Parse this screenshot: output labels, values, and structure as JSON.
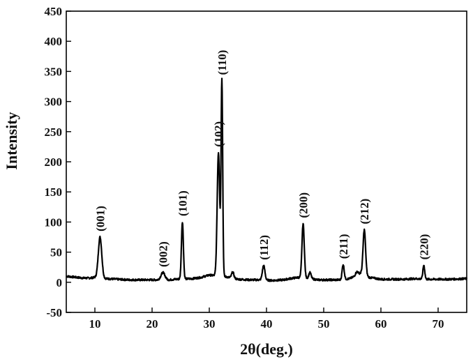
{
  "chart_data": {
    "type": "line",
    "title": "",
    "xlabel": "2θ(deg.)",
    "ylabel": "Intensity",
    "xlim": [
      5,
      75
    ],
    "ylim": [
      -50,
      450
    ],
    "xticks": [
      10,
      20,
      30,
      40,
      50,
      60,
      70
    ],
    "yticks": [
      -50,
      0,
      50,
      100,
      150,
      200,
      250,
      300,
      350,
      400,
      450
    ],
    "grid": false,
    "legend": "none",
    "line_color": "#000000",
    "baseline": [
      [
        5,
        10
      ],
      [
        6,
        9
      ],
      [
        7,
        8
      ],
      [
        8,
        7
      ],
      [
        9,
        7
      ],
      [
        10,
        8
      ],
      [
        12,
        6
      ],
      [
        14,
        5
      ],
      [
        16,
        4
      ],
      [
        18,
        4
      ],
      [
        20,
        4
      ],
      [
        23,
        4
      ],
      [
        24,
        5
      ],
      [
        27,
        6
      ],
      [
        28.5,
        8
      ],
      [
        30,
        12
      ],
      [
        33,
        9
      ],
      [
        35,
        5
      ],
      [
        37,
        4
      ],
      [
        39,
        4
      ],
      [
        41,
        3
      ],
      [
        43,
        4
      ],
      [
        44,
        6
      ],
      [
        45.5,
        8
      ],
      [
        47,
        7
      ],
      [
        49,
        4
      ],
      [
        51,
        4
      ],
      [
        53,
        4
      ],
      [
        54.5,
        6
      ],
      [
        55.5,
        10
      ],
      [
        56.5,
        15
      ],
      [
        58,
        8
      ],
      [
        60,
        5
      ],
      [
        62,
        5
      ],
      [
        64,
        5
      ],
      [
        66,
        6
      ],
      [
        68,
        5
      ],
      [
        70,
        5
      ],
      [
        72,
        5
      ],
      [
        75,
        6
      ]
    ],
    "peaks": [
      {
        "x": 10.9,
        "height": 68,
        "width": 0.3,
        "label": "(001)"
      },
      {
        "x": 21.9,
        "height": 12,
        "width": 0.35,
        "label": "(002)"
      },
      {
        "x": 25.3,
        "height": 95,
        "width": 0.17,
        "label": "(101)"
      },
      {
        "x": 31.6,
        "height": 205,
        "width": 0.22,
        "label": "(102)"
      },
      {
        "x": 32.2,
        "height": 325,
        "width": 0.14,
        "label": "(110)"
      },
      {
        "x": 34.1,
        "height": 10,
        "width": 0.2,
        "label": ""
      },
      {
        "x": 39.5,
        "height": 24,
        "width": 0.22,
        "label": "(112)"
      },
      {
        "x": 46.4,
        "height": 90,
        "width": 0.2,
        "label": "(200)"
      },
      {
        "x": 47.6,
        "height": 10,
        "width": 0.2,
        "label": ""
      },
      {
        "x": 53.4,
        "height": 25,
        "width": 0.18,
        "label": "(211)"
      },
      {
        "x": 55.8,
        "height": 6,
        "width": 0.25,
        "label": ""
      },
      {
        "x": 57.1,
        "height": 75,
        "width": 0.22,
        "label": "(212)"
      },
      {
        "x": 67.5,
        "height": 23,
        "width": 0.16,
        "label": "(220)"
      }
    ]
  }
}
